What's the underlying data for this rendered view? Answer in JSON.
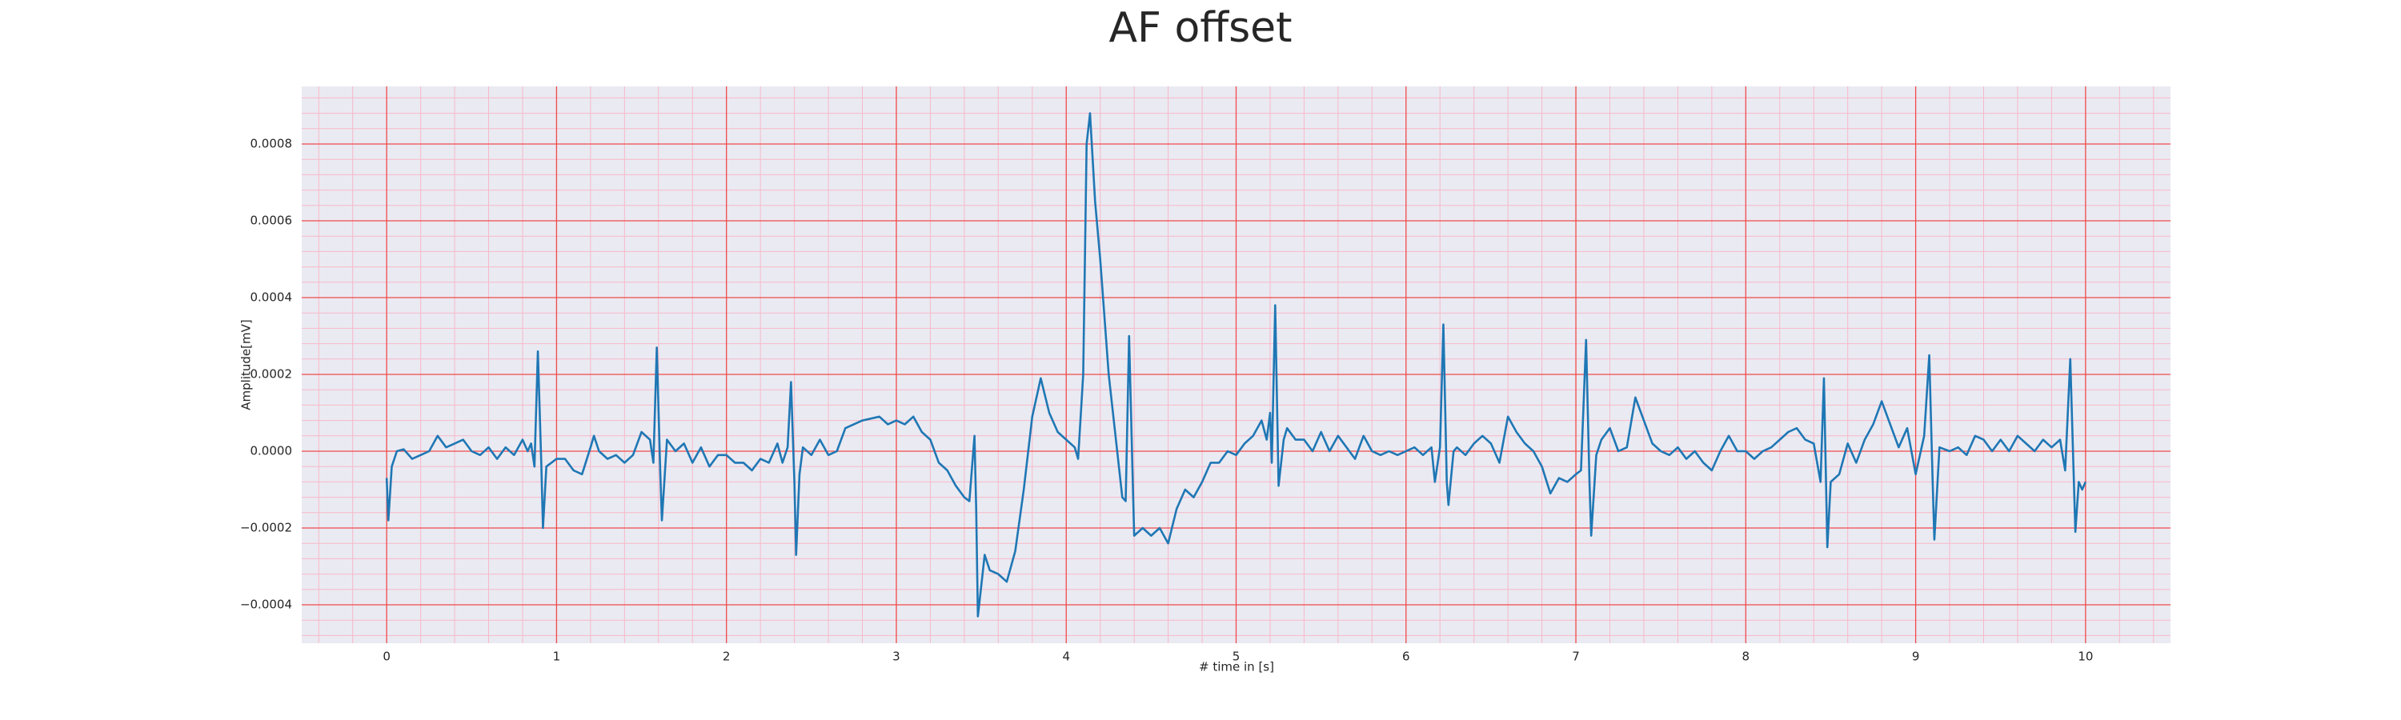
{
  "chart_data": {
    "type": "line",
    "title": "AF offset",
    "x_label": "# time in [s]",
    "y_label": "Amplitude[mV]",
    "color": "#1f77b4",
    "grid": true,
    "minor_grid": true,
    "xlim": [
      -0.5,
      10.5
    ],
    "xticks": [
      0,
      1,
      2,
      3,
      4,
      5,
      6,
      7,
      8,
      9,
      10
    ],
    "ylim": [
      -0.0005,
      0.00095
    ],
    "yticks": [
      {
        "value": -0.0004,
        "label": "−0.0004"
      },
      {
        "value": -0.0002,
        "label": "−0.0002"
      },
      {
        "value": 0,
        "label": "0.0000"
      },
      0.0002,
      0.0004,
      0.0006,
      0.0008
    ],
    "x": [
      0,
      0.01,
      0.03,
      0.06,
      0.1,
      0.15,
      0.2,
      0.25,
      0.3,
      0.35,
      0.4,
      0.45,
      0.5,
      0.55,
      0.6,
      0.65,
      0.7,
      0.75,
      0.8,
      0.83,
      0.85,
      0.87,
      0.89,
      0.91,
      0.92,
      0.94,
      1.0,
      1.05,
      1.1,
      1.15,
      1.2,
      1.22,
      1.25,
      1.3,
      1.35,
      1.4,
      1.45,
      1.5,
      1.55,
      1.57,
      1.59,
      1.61,
      1.62,
      1.65,
      1.7,
      1.75,
      1.8,
      1.85,
      1.9,
      1.95,
      2.0,
      2.05,
      2.1,
      2.15,
      2.2,
      2.25,
      2.3,
      2.33,
      2.36,
      2.38,
      2.4,
      2.41,
      2.43,
      2.45,
      2.5,
      2.55,
      2.6,
      2.65,
      2.7,
      2.8,
      2.9,
      2.95,
      3.0,
      3.05,
      3.1,
      3.15,
      3.2,
      3.25,
      3.3,
      3.35,
      3.4,
      3.43,
      3.46,
      3.47,
      3.48,
      3.52,
      3.55,
      3.6,
      3.65,
      3.7,
      3.75,
      3.8,
      3.85,
      3.9,
      3.95,
      4.0,
      4.05,
      4.07,
      4.1,
      4.12,
      4.14,
      4.17,
      4.2,
      4.25,
      4.3,
      4.33,
      4.35,
      4.37,
      4.39,
      4.4,
      4.45,
      4.5,
      4.55,
      4.6,
      4.65,
      4.7,
      4.75,
      4.8,
      4.85,
      4.9,
      4.95,
      5.0,
      5.05,
      5.1,
      5.15,
      5.18,
      5.2,
      5.21,
      5.23,
      5.25,
      5.28,
      5.3,
      5.35,
      5.4,
      5.45,
      5.5,
      5.55,
      5.6,
      5.65,
      5.7,
      5.75,
      5.8,
      5.85,
      5.9,
      5.95,
      6.0,
      6.05,
      6.1,
      6.15,
      6.17,
      6.2,
      6.22,
      6.24,
      6.25,
      6.28,
      6.3,
      6.35,
      6.4,
      6.45,
      6.5,
      6.55,
      6.6,
      6.65,
      6.7,
      6.75,
      6.8,
      6.85,
      6.9,
      6.95,
      7.0,
      7.03,
      7.06,
      7.08,
      7.09,
      7.12,
      7.15,
      7.2,
      7.25,
      7.3,
      7.35,
      7.4,
      7.45,
      7.5,
      7.55,
      7.6,
      7.65,
      7.7,
      7.75,
      7.8,
      7.85,
      7.9,
      7.95,
      8.0,
      8.05,
      8.1,
      8.15,
      8.2,
      8.25,
      8.3,
      8.35,
      8.4,
      8.44,
      8.46,
      8.48,
      8.5,
      8.55,
      8.6,
      8.65,
      8.7,
      8.75,
      8.8,
      8.85,
      8.9,
      8.95,
      9.0,
      9.05,
      9.08,
      9.1,
      9.11,
      9.14,
      9.2,
      9.25,
      9.3,
      9.35,
      9.4,
      9.45,
      9.5,
      9.55,
      9.6,
      9.65,
      9.7,
      9.75,
      9.8,
      9.85,
      9.88,
      9.91,
      9.94,
      9.96,
      9.98,
      10.0
    ],
    "values": [
      -7e-05,
      -0.00018,
      -4e-05,
      0,
      5e-06,
      -2e-05,
      -1e-05,
      0,
      4e-05,
      1e-05,
      2e-05,
      3e-05,
      0,
      -1e-05,
      1e-05,
      -2e-05,
      1e-05,
      -1e-05,
      3e-05,
      0,
      2e-05,
      -4e-05,
      0.00026,
      -3e-05,
      -0.0002,
      -4e-05,
      -2e-05,
      -2e-05,
      -5e-05,
      -6e-05,
      1e-05,
      4e-05,
      0,
      -2e-05,
      -1e-05,
      -3e-05,
      -1e-05,
      5e-05,
      3e-05,
      -3e-05,
      0.00027,
      -5e-05,
      -0.00018,
      3e-05,
      0,
      2e-05,
      -3e-05,
      1e-05,
      -4e-05,
      -1e-05,
      -1e-05,
      -3e-05,
      -3e-05,
      -5e-05,
      -2e-05,
      -3e-05,
      2e-05,
      -3e-05,
      1e-05,
      0.00018,
      -8e-05,
      -0.00027,
      -6e-05,
      1e-05,
      -1e-05,
      3e-05,
      -1e-05,
      0,
      6e-05,
      8e-05,
      9e-05,
      7e-05,
      8e-05,
      7e-05,
      9e-05,
      5e-05,
      3e-05,
      -3e-05,
      -5e-05,
      -9e-05,
      -0.00012,
      -0.00013,
      4e-05,
      -0.00015,
      -0.00043,
      -0.00027,
      -0.00031,
      -0.00032,
      -0.00034,
      -0.00026,
      -0.0001,
      9e-05,
      0.00019,
      0.0001,
      5e-05,
      3e-05,
      1e-05,
      -2e-05,
      0.0002,
      0.0008,
      0.00088,
      0.00065,
      0.0005,
      0.0002,
      0,
      -0.00012,
      -0.00013,
      0.0003,
      -5e-05,
      -0.00022,
      -0.0002,
      -0.00022,
      -0.0002,
      -0.00024,
      -0.00015,
      -0.0001,
      -0.00012,
      -8e-05,
      -3e-05,
      -3e-05,
      0,
      -1e-05,
      2e-05,
      4e-05,
      8e-05,
      3e-05,
      0.0001,
      -3e-05,
      0.00038,
      -9e-05,
      3e-05,
      6e-05,
      3e-05,
      3e-05,
      0,
      5e-05,
      0,
      4e-05,
      1e-05,
      -2e-05,
      4e-05,
      0,
      -1e-05,
      0,
      -1e-05,
      0,
      1e-05,
      -1e-05,
      1e-05,
      -8e-05,
      1e-05,
      0.00033,
      -8e-05,
      -0.00014,
      0,
      1e-05,
      -1e-05,
      2e-05,
      4e-05,
      2e-05,
      -3e-05,
      9e-05,
      5e-05,
      2e-05,
      0,
      -4e-05,
      -0.00011,
      -7e-05,
      -8e-05,
      -6e-05,
      -5e-05,
      0.00029,
      -8e-05,
      -0.00022,
      -1e-05,
      3e-05,
      6e-05,
      0,
      1e-05,
      0.00014,
      8e-05,
      2e-05,
      0,
      -1e-05,
      1e-05,
      -2e-05,
      0,
      -3e-05,
      -5e-05,
      0,
      4e-05,
      0,
      0,
      -2e-05,
      0,
      1e-05,
      3e-05,
      5e-05,
      6e-05,
      3e-05,
      2e-05,
      -8e-05,
      0.00019,
      -0.00025,
      -8e-05,
      -6e-05,
      2e-05,
      -3e-05,
      3e-05,
      7e-05,
      0.00013,
      7e-05,
      1e-05,
      6e-05,
      -6e-05,
      4e-05,
      0.00025,
      -8e-05,
      -0.00023,
      1e-05,
      0,
      1e-05,
      -1e-05,
      4e-05,
      3e-05,
      0,
      3e-05,
      0,
      4e-05,
      2e-05,
      0,
      3e-05,
      1e-05,
      3e-05,
      -5e-05,
      0.00024,
      -0.00021,
      -8e-05,
      -0.0001,
      -8e-05
    ]
  }
}
